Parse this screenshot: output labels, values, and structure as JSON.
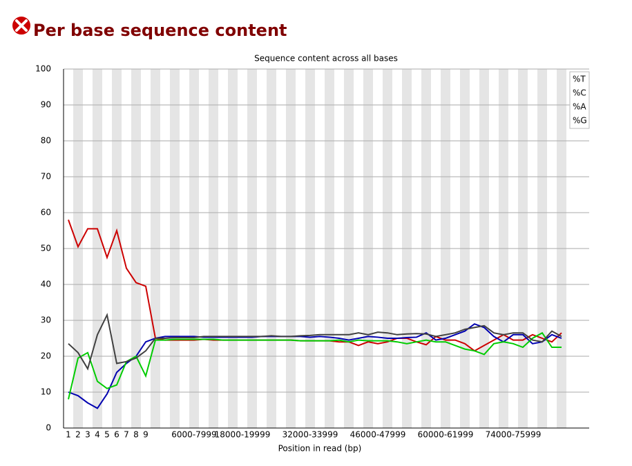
{
  "chart_data": {
    "type": "line",
    "title": "Per base sequence content",
    "subtitle": "Sequence content across all bases",
    "x_label": "Position in read (bp)",
    "categories": [
      "1",
      "2",
      "3",
      "4",
      "5",
      "6",
      "7",
      "8",
      "9",
      null,
      null,
      null,
      null,
      "6000-7999",
      null,
      null,
      null,
      null,
      "18000-19999",
      null,
      null,
      null,
      null,
      null,
      null,
      "32000-33999",
      null,
      null,
      null,
      null,
      null,
      null,
      "46000-47999",
      null,
      null,
      null,
      null,
      null,
      null,
      "60000-61999",
      null,
      null,
      null,
      null,
      null,
      null,
      "74000-75999",
      null,
      null,
      null,
      null,
      null
    ],
    "series": [
      {
        "name": "%T",
        "color": "#cc0000",
        "values": [
          58,
          50.5,
          55.5,
          55.5,
          47.5,
          55,
          44.5,
          40.5,
          39.5,
          25,
          24.5,
          24.5,
          24.5,
          24.5,
          24.7,
          24.5,
          24.5,
          24.5,
          24.5,
          24.5,
          24.5,
          24.5,
          24.5,
          24.5,
          24.3,
          24.3,
          24.3,
          24.3,
          24,
          24,
          23,
          24,
          23.5,
          24,
          25,
          25,
          24,
          23.2,
          25.5,
          24.5,
          24.5,
          23.5,
          21.5,
          23,
          24.5,
          26,
          24.5,
          24.5,
          26,
          25,
          24,
          26.5
        ]
      },
      {
        "name": "%C",
        "color": "#0000b0",
        "values": [
          10,
          9,
          7,
          5.5,
          9.5,
          15.5,
          18,
          20,
          24,
          25,
          25.5,
          25.5,
          25.5,
          25.5,
          25.3,
          25.3,
          25.3,
          25.3,
          25.3,
          25.3,
          25.5,
          25.5,
          25.5,
          25.5,
          25.5,
          25.3,
          25.5,
          25.3,
          25,
          24.5,
          25,
          25.5,
          25.3,
          25,
          25,
          25.2,
          25.3,
          26.5,
          24.5,
          25,
          26,
          27,
          29,
          28,
          25.5,
          24,
          26,
          26,
          23.5,
          24,
          26,
          25
        ]
      },
      {
        "name": "%A",
        "color": "#00cc00",
        "values": [
          8,
          19.5,
          21,
          13,
          11,
          12,
          18.5,
          20,
          14.5,
          24.5,
          24.5,
          24.7,
          24.7,
          24.7,
          24.7,
          24.7,
          24.5,
          24.5,
          24.5,
          24.5,
          24.5,
          24.5,
          24.5,
          24.5,
          24.3,
          24.3,
          24.3,
          24.3,
          24.5,
          24,
          24.5,
          24.3,
          24.3,
          24.3,
          24,
          23.5,
          24,
          24.5,
          24,
          24,
          23,
          22,
          21.5,
          20.5,
          23.5,
          24,
          23.5,
          22.5,
          25,
          26.5,
          22.5,
          22.5
        ]
      },
      {
        "name": "%G",
        "color": "#404040",
        "values": [
          23.5,
          21,
          16.5,
          26,
          31.5,
          18,
          18.5,
          19.5,
          21.5,
          25,
          25,
          25.2,
          25.2,
          25.2,
          25.5,
          25.5,
          25.5,
          25.5,
          25.5,
          25.5,
          25.5,
          25.7,
          25.5,
          25.5,
          25.7,
          25.8,
          26,
          26,
          26,
          26,
          26.5,
          26,
          26.7,
          26.5,
          26,
          26.2,
          26.3,
          26.2,
          25.5,
          26,
          26.5,
          27.5,
          28,
          28.5,
          26.5,
          26,
          26.5,
          26.5,
          24.5,
          24,
          27,
          25.5
        ]
      }
    ],
    "ylim": [
      0,
      100
    ],
    "yticks": [
      0,
      10,
      20,
      30,
      40,
      50,
      60,
      70,
      80,
      90,
      100
    ],
    "grid": true,
    "legend": "top-right"
  }
}
